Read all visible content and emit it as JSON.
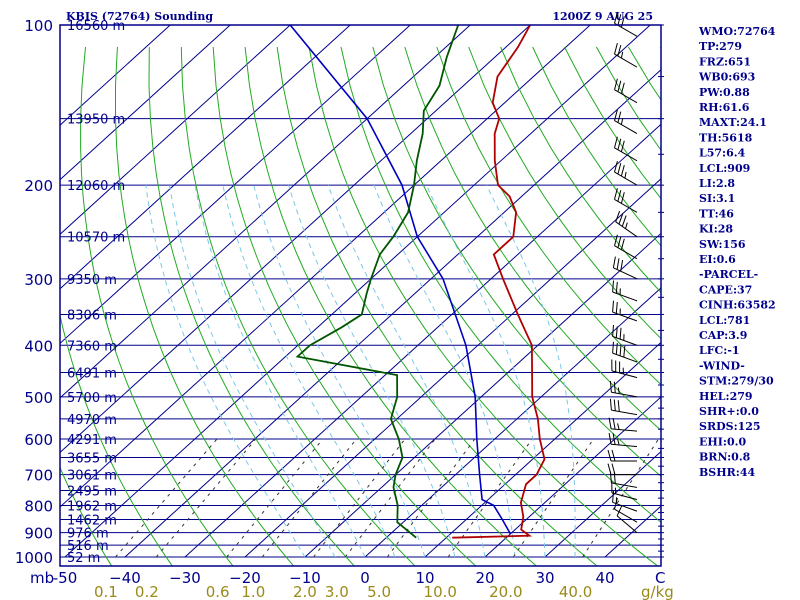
{
  "chart_data": {
    "type": "skew-t",
    "title": "KBIS (72764) Sounding",
    "time": "1200Z  9 AUG 25",
    "pressure_ticks": [
      100,
      200,
      300,
      400,
      500,
      600,
      700,
      800,
      900,
      1000
    ],
    "pressure_tick_labels": [
      "100",
      "200",
      "300",
      "400",
      "500",
      "600",
      "700",
      "800",
      "900",
      "1000"
    ],
    "pressure_unit_label": "mb",
    "temperature_ticks": [
      -50,
      -40,
      -30,
      -20,
      -10,
      0,
      10,
      20,
      30,
      40
    ],
    "temperature_tick_labels": [
      "-50",
      "−40",
      "−30",
      "−20",
      "−10",
      "0",
      "10",
      "20",
      "30",
      "40"
    ],
    "temperature_unit_label": "C",
    "mixing_ratio_ticks": [
      0.1,
      0.2,
      0.6,
      1.0,
      2.0,
      3.0,
      5.0,
      10.0,
      20.0,
      40.0
    ],
    "mixing_ratio_tick_labels": [
      "0.1",
      "0.2",
      "0.6",
      "1.0",
      "2.0",
      "3.0",
      "5.0",
      "10.0",
      "20.0",
      "40.0"
    ],
    "mixing_ratio_unit_label": "g/kg",
    "height_labels": [
      {
        "p": 100,
        "label": "16560 m"
      },
      {
        "p": 150,
        "label": "13950 m"
      },
      {
        "p": 200,
        "label": "12060 m"
      },
      {
        "p": 250,
        "label": "10570 m"
      },
      {
        "p": 300,
        "label": "9350 m"
      },
      {
        "p": 350,
        "label": "8306 m"
      },
      {
        "p": 400,
        "label": "7360 m"
      },
      {
        "p": 450,
        "label": "6491 m"
      },
      {
        "p": 500,
        "label": "5700 m"
      },
      {
        "p": 550,
        "label": "4970 m"
      },
      {
        "p": 600,
        "label": "4291 m"
      },
      {
        "p": 650,
        "label": "3655 m"
      },
      {
        "p": 700,
        "label": "3061 m"
      },
      {
        "p": 750,
        "label": "2495 m"
      },
      {
        "p": 800,
        "label": "1962 m"
      },
      {
        "p": 850,
        "label": "1462 m"
      },
      {
        "p": 900,
        "label": "976 m"
      },
      {
        "p": 950,
        "label": "516 m"
      },
      {
        "p": 1000,
        "label": "52 m"
      }
    ],
    "temperature_profile": [
      {
        "p": 920,
        "t": 11
      },
      {
        "p": 912,
        "t": 23.5
      },
      {
        "p": 888,
        "t": 21
      },
      {
        "p": 840,
        "t": 19
      },
      {
        "p": 790,
        "t": 16
      },
      {
        "p": 730,
        "t": 13.5
      },
      {
        "p": 700,
        "t": 13.5
      },
      {
        "p": 655,
        "t": 12
      },
      {
        "p": 600,
        "t": 7.5
      },
      {
        "p": 550,
        "t": 3.5
      },
      {
        "p": 500,
        "t": -1.5
      },
      {
        "p": 455,
        "t": -5.5
      },
      {
        "p": 400,
        "t": -11
      },
      {
        "p": 350,
        "t": -19
      },
      {
        "p": 300,
        "t": -28
      },
      {
        "p": 270,
        "t": -34
      },
      {
        "p": 250,
        "t": -34
      },
      {
        "p": 225,
        "t": -38
      },
      {
        "p": 210,
        "t": -42
      },
      {
        "p": 200,
        "t": -46
      },
      {
        "p": 180,
        "t": -51
      },
      {
        "p": 160,
        "t": -56
      },
      {
        "p": 150,
        "t": -58
      },
      {
        "p": 140,
        "t": -62
      },
      {
        "p": 125,
        "t": -66
      },
      {
        "p": 110,
        "t": -68
      },
      {
        "p": 100,
        "t": -70
      }
    ],
    "dewpoint_profile": [
      {
        "p": 920,
        "t": 5
      },
      {
        "p": 860,
        "t": -1
      },
      {
        "p": 800,
        "t": -4
      },
      {
        "p": 740,
        "t": -8
      },
      {
        "p": 700,
        "t": -10
      },
      {
        "p": 650,
        "t": -12
      },
      {
        "p": 600,
        "t": -16
      },
      {
        "p": 550,
        "t": -21
      },
      {
        "p": 500,
        "t": -24
      },
      {
        "p": 455,
        "t": -28
      },
      {
        "p": 420,
        "t": -48
      },
      {
        "p": 400,
        "t": -48
      },
      {
        "p": 370,
        "t": -46
      },
      {
        "p": 350,
        "t": -45
      },
      {
        "p": 320,
        "t": -48
      },
      {
        "p": 300,
        "t": -50
      },
      {
        "p": 270,
        "t": -53
      },
      {
        "p": 250,
        "t": -54
      },
      {
        "p": 225,
        "t": -56
      },
      {
        "p": 200,
        "t": -60
      },
      {
        "p": 180,
        "t": -64
      },
      {
        "p": 160,
        "t": -68
      },
      {
        "p": 145,
        "t": -72
      },
      {
        "p": 130,
        "t": -74
      },
      {
        "p": 115,
        "t": -78
      },
      {
        "p": 100,
        "t": -82
      }
    ],
    "parcel_profile": [
      {
        "p": 905,
        "t": 20
      },
      {
        "p": 850,
        "t": 16
      },
      {
        "p": 800,
        "t": 12
      },
      {
        "p": 780,
        "t": 9
      },
      {
        "p": 700,
        "t": 4
      },
      {
        "p": 600,
        "t": -3
      },
      {
        "p": 500,
        "t": -11
      },
      {
        "p": 400,
        "t": -22
      },
      {
        "p": 300,
        "t": -38
      },
      {
        "p": 250,
        "t": -50
      },
      {
        "p": 200,
        "t": -62
      },
      {
        "p": 150,
        "t": -80
      },
      {
        "p": 100,
        "t": -110
      }
    ],
    "wind_barbs": [
      {
        "p": 105,
        "dir": 300,
        "kt": 30
      },
      {
        "p": 120,
        "dir": 300,
        "kt": 25
      },
      {
        "p": 140,
        "dir": 300,
        "kt": 30
      },
      {
        "p": 160,
        "dir": 300,
        "kt": 25
      },
      {
        "p": 180,
        "dir": 300,
        "kt": 30
      },
      {
        "p": 200,
        "dir": 300,
        "kt": 35
      },
      {
        "p": 225,
        "dir": 300,
        "kt": 30
      },
      {
        "p": 250,
        "dir": 305,
        "kt": 35
      },
      {
        "p": 275,
        "dir": 300,
        "kt": 30
      },
      {
        "p": 300,
        "dir": 295,
        "kt": 30
      },
      {
        "p": 330,
        "dir": 290,
        "kt": 25
      },
      {
        "p": 360,
        "dir": 290,
        "kt": 25
      },
      {
        "p": 400,
        "dir": 290,
        "kt": 35
      },
      {
        "p": 430,
        "dir": 290,
        "kt": 40
      },
      {
        "p": 460,
        "dir": 285,
        "kt": 35
      },
      {
        "p": 500,
        "dir": 280,
        "kt": 25
      },
      {
        "p": 540,
        "dir": 280,
        "kt": 30
      },
      {
        "p": 580,
        "dir": 275,
        "kt": 25
      },
      {
        "p": 620,
        "dir": 275,
        "kt": 25
      },
      {
        "p": 660,
        "dir": 270,
        "kt": 20
      },
      {
        "p": 700,
        "dir": 270,
        "kt": 20
      },
      {
        "p": 740,
        "dir": 280,
        "kt": 20
      },
      {
        "p": 780,
        "dir": 285,
        "kt": 15
      },
      {
        "p": 820,
        "dir": 290,
        "kt": 15
      },
      {
        "p": 860,
        "dir": 300,
        "kt": 10
      },
      {
        "p": 900,
        "dir": 310,
        "kt": 10
      }
    ],
    "colors": {
      "frame": "#00008b",
      "isotherm": "#00008b",
      "dry_adiabat": "#22aa22",
      "moist_adiabat": "#7cc8e8",
      "mixing_ratio": "#333333",
      "temperature": "#b00000",
      "dewpoint": "#005500",
      "parcel": "#0000c0",
      "barbs": "#000000",
      "mixing_label": "#9a8a1a"
    }
  },
  "indices": [
    "WMO:72764",
    "TP:279",
    "FRZ:651",
    "WB0:693",
    "PW:0.88",
    "RH:61.6",
    "MAXT:24.1",
    "TH:5618",
    "L57:6.4",
    "LCL:909",
    "LI:2.8",
    "SI:3.1",
    "TT:46",
    "KI:28",
    "SW:156",
    "EI:0.6",
    "-PARCEL-",
    "CAPE:37",
    "CINH:63582",
    "LCL:781",
    "CAP:3.9",
    "LFC:-1",
    "-WIND-",
    "STM:279/30",
    "HEL:279",
    "SHR+:0.0",
    "SRDS:125",
    "EHI:0.0",
    "BRN:0.8",
    "BSHR:44"
  ]
}
